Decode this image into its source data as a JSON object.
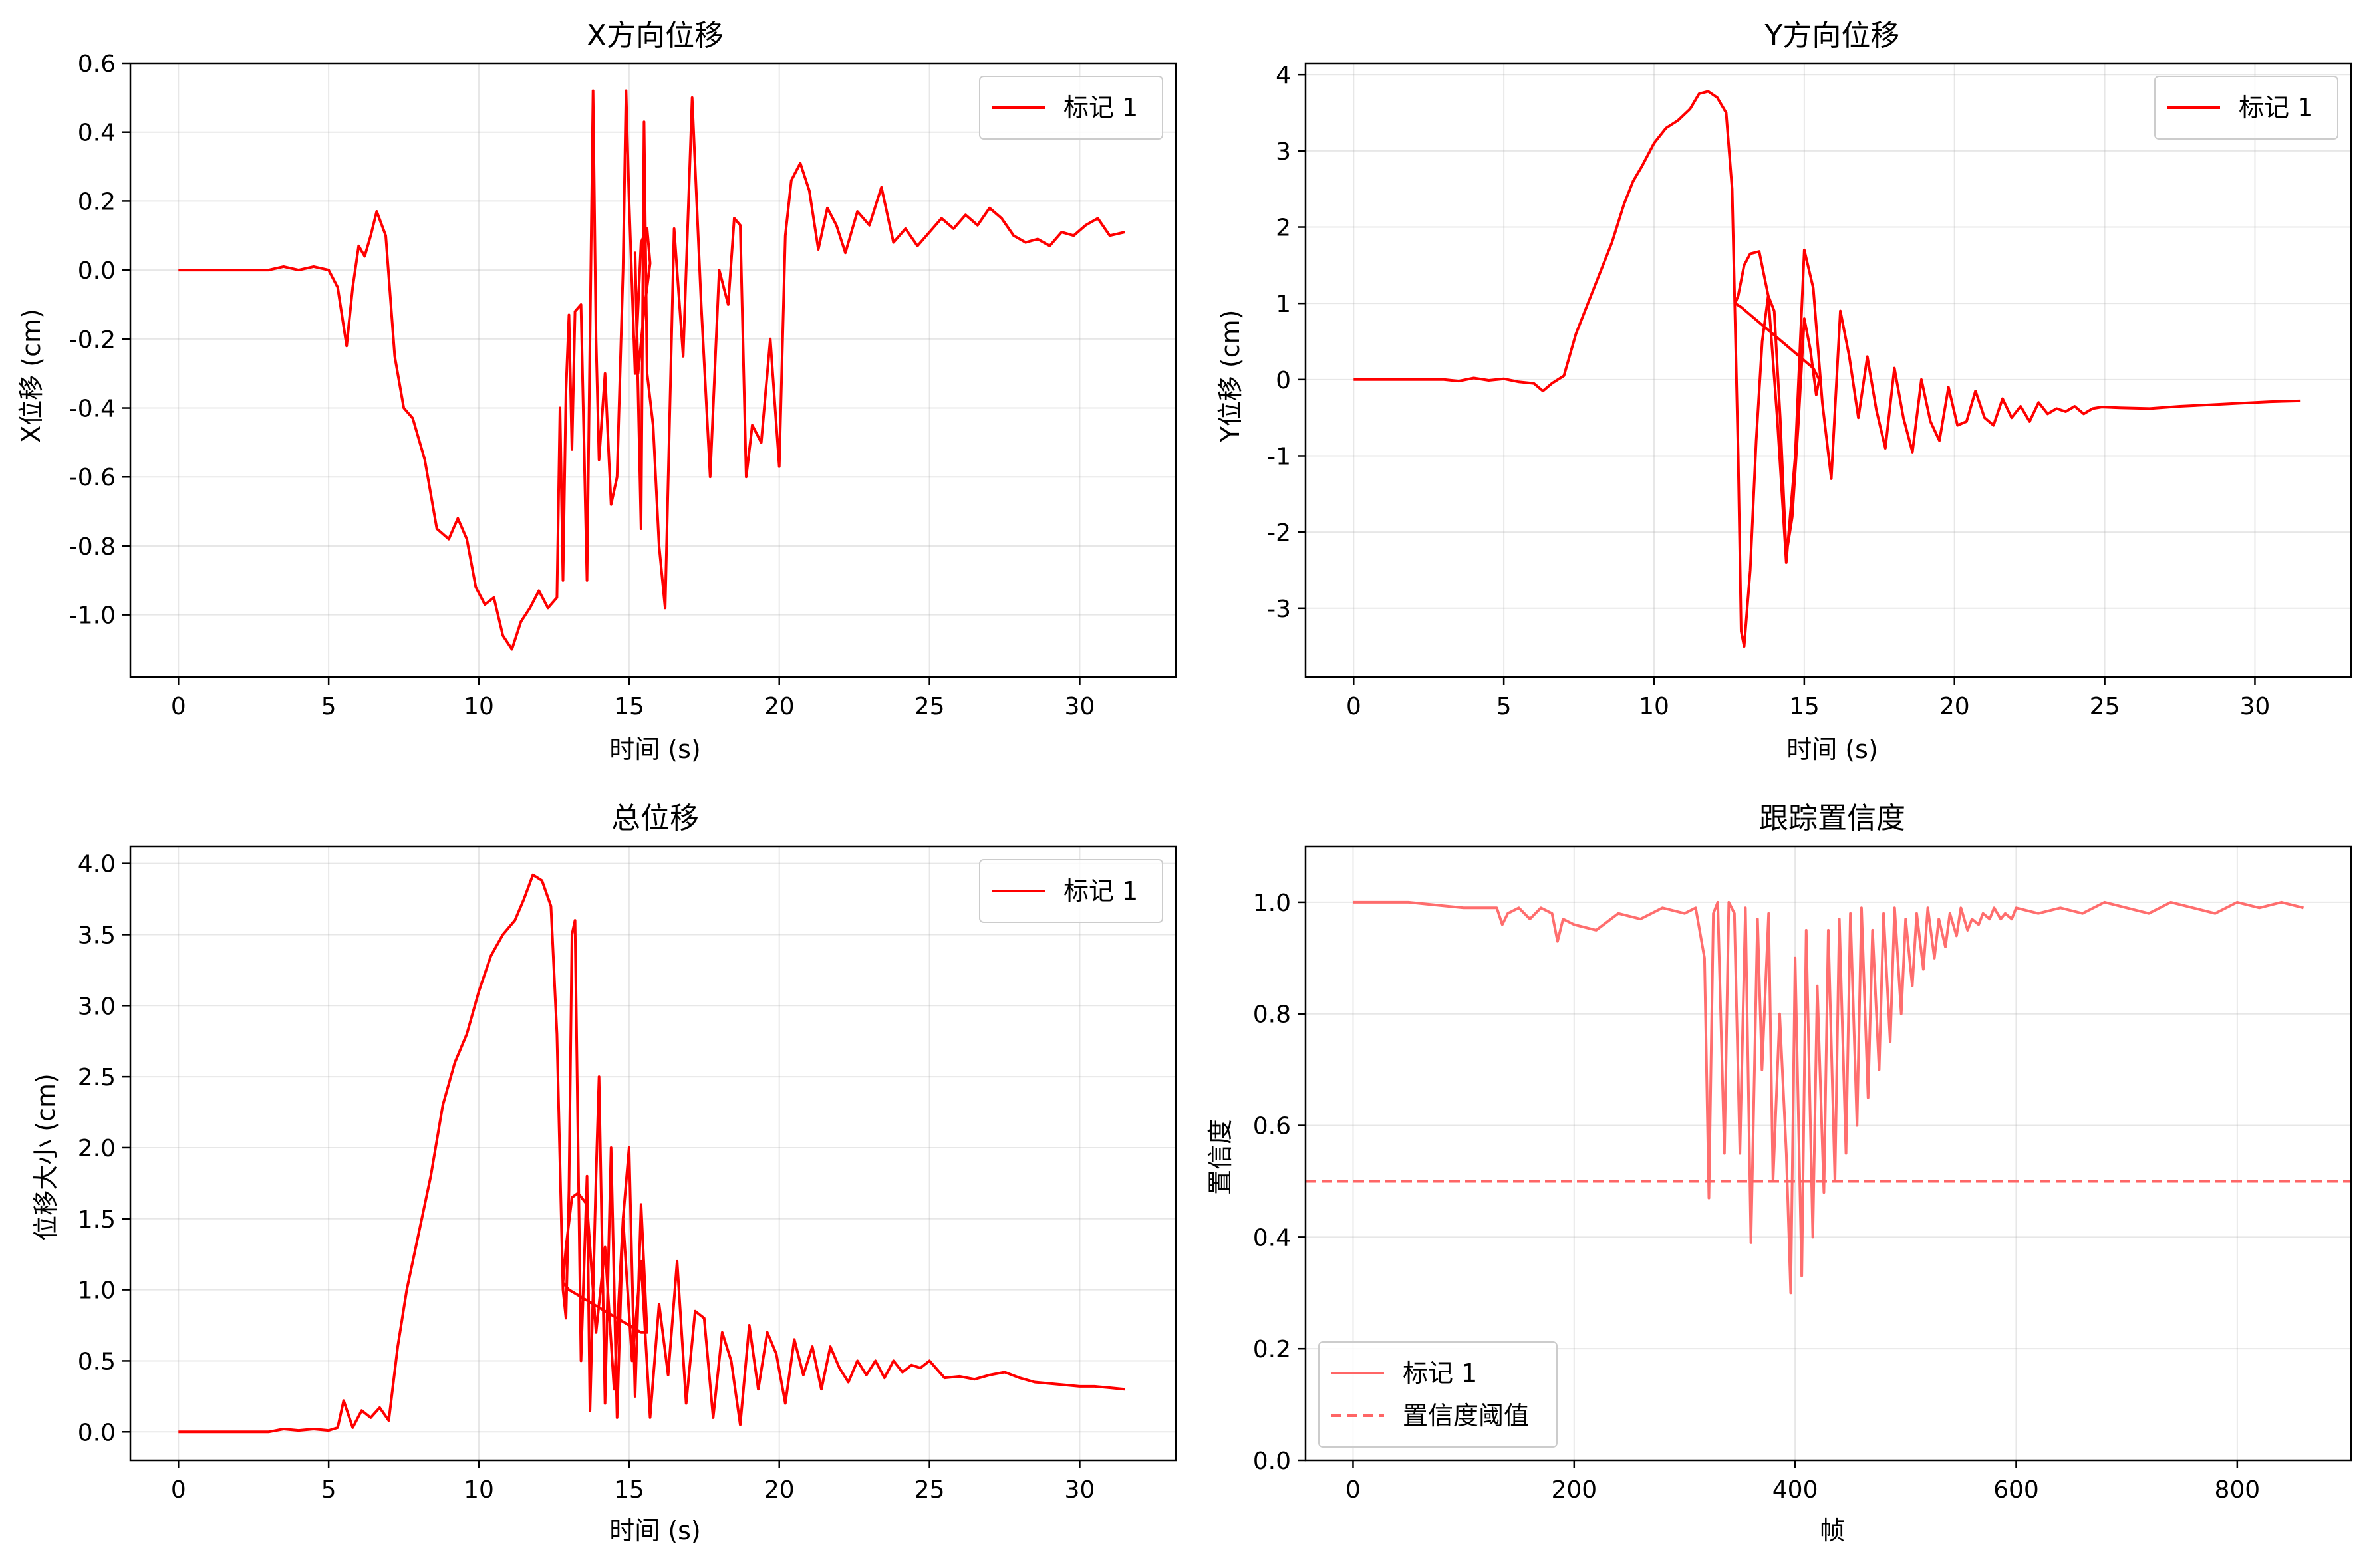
{
  "figure": {
    "background": "#ffffff"
  },
  "chart_data": [
    {
      "id": "x",
      "type": "line",
      "title": "X方向位移",
      "xlabel": "时间 (s)",
      "ylabel": "X位移 (cm)",
      "xlim": [
        -1.6,
        33.2
      ],
      "ylim": [
        -1.18,
        0.6
      ],
      "xticks": [
        0,
        5,
        10,
        15,
        20,
        25,
        30
      ],
      "xtick_labels": [
        "0",
        "5",
        "10",
        "15",
        "20",
        "25",
        "30"
      ],
      "yticks": [
        -1.0,
        -0.8,
        -0.6,
        -0.4,
        -0.2,
        0.0,
        0.2,
        0.4,
        0.6
      ],
      "ytick_labels": [
        "-1.0",
        "-0.8",
        "-0.6",
        "-0.4",
        "-0.2",
        "0.0",
        "0.2",
        "0.4",
        "0.6"
      ],
      "grid": true,
      "legend": {
        "position": "upper-right",
        "entries": [
          {
            "label": "标记 1",
            "color": "#ff0000",
            "style": "solid"
          }
        ]
      },
      "series": [
        {
          "name": "标记 1",
          "color": "#ff0000",
          "style": "solid",
          "opacity": 1,
          "x": [
            0,
            1,
            2,
            3,
            3.5,
            4,
            4.5,
            5,
            5.3,
            5.6,
            5.8,
            6.0,
            6.2,
            6.4,
            6.6,
            6.9,
            7.2,
            7.5,
            7.8,
            8.2,
            8.6,
            9.0,
            9.3,
            9.6,
            9.9,
            10.2,
            10.5,
            10.8,
            11.1,
            11.4,
            11.7,
            12.0,
            12.3,
            12.6,
            12.7,
            12.8,
            12.9,
            13.0,
            13.1,
            13.2,
            13.4,
            13.6,
            13.8,
            13.9,
            14.0,
            14.2,
            14.4,
            14.6,
            14.8,
            14.9,
            15.0,
            15.2,
            15.4,
            15.6,
            15.7,
            15.5,
            15.3,
            15.2,
            15.4,
            15.5,
            15.6,
            15.8,
            16.0,
            16.2,
            16.5,
            16.8,
            17.1,
            17.4,
            17.7,
            18.0,
            18.3,
            18.5,
            18.7,
            18.9,
            19.1,
            19.4,
            19.7,
            20.0,
            20.2,
            20.4,
            20.7,
            21.0,
            21.3,
            21.6,
            21.9,
            22.2,
            22.6,
            23.0,
            23.4,
            23.8,
            24.2,
            24.6,
            25.0,
            25.4,
            25.8,
            26.2,
            26.6,
            27.0,
            27.4,
            27.8,
            28.2,
            28.6,
            29.0,
            29.4,
            29.8,
            30.2,
            30.6,
            31.0,
            31.5
          ],
          "y": [
            0,
            0,
            0,
            0,
            0.01,
            0,
            0.01,
            0,
            -0.05,
            -0.22,
            -0.05,
            0.07,
            0.04,
            0.1,
            0.17,
            0.1,
            -0.25,
            -0.4,
            -0.43,
            -0.55,
            -0.75,
            -0.78,
            -0.72,
            -0.78,
            -0.92,
            -0.97,
            -0.95,
            -1.06,
            -1.1,
            -1.02,
            -0.98,
            -0.93,
            -0.98,
            -0.95,
            -0.4,
            -0.9,
            -0.35,
            -0.13,
            -0.52,
            -0.12,
            -0.1,
            -0.9,
            0.52,
            -0.2,
            -0.55,
            -0.3,
            -0.68,
            -0.6,
            0.0,
            0.52,
            0.2,
            -0.3,
            0.08,
            0.12,
            0.02,
            -0.12,
            -0.3,
            0.05,
            -0.75,
            0.43,
            -0.3,
            -0.45,
            -0.8,
            -0.98,
            0.12,
            -0.25,
            0.5,
            -0.1,
            -0.6,
            0.0,
            -0.1,
            0.15,
            0.13,
            -0.6,
            -0.45,
            -0.5,
            -0.2,
            -0.57,
            0.1,
            0.26,
            0.31,
            0.23,
            0.06,
            0.18,
            0.13,
            0.05,
            0.17,
            0.13,
            0.24,
            0.08,
            0.12,
            0.07,
            0.11,
            0.15,
            0.12,
            0.16,
            0.13,
            0.18,
            0.15,
            0.1,
            0.08,
            0.09,
            0.07,
            0.11,
            0.1,
            0.13,
            0.15,
            0.1,
            0.11
          ]
        }
      ]
    },
    {
      "id": "y",
      "type": "line",
      "title": "Y方向位移",
      "xlabel": "时间 (s)",
      "ylabel": "Y位移 (cm)",
      "xlim": [
        -1.6,
        33.2
      ],
      "ylim": [
        -3.9,
        4.15
      ],
      "xticks": [
        0,
        5,
        10,
        15,
        20,
        25,
        30
      ],
      "xtick_labels": [
        "0",
        "5",
        "10",
        "15",
        "20",
        "25",
        "30"
      ],
      "yticks": [
        -3,
        -2,
        -1,
        0,
        1,
        2,
        3,
        4
      ],
      "ytick_labels": [
        "-3",
        "-2",
        "-1",
        "0",
        "1",
        "2",
        "3",
        "4"
      ],
      "grid": true,
      "legend": {
        "position": "upper-right",
        "entries": [
          {
            "label": "标记 1",
            "color": "#ff0000",
            "style": "solid"
          }
        ]
      },
      "series": [
        {
          "name": "标记 1",
          "color": "#ff0000",
          "style": "solid",
          "opacity": 1,
          "x": [
            0,
            1,
            2,
            3,
            3.5,
            4,
            4.5,
            5,
            5.5,
            6,
            6.3,
            6.6,
            7,
            7.4,
            7.8,
            8.2,
            8.6,
            9,
            9.3,
            9.6,
            10,
            10.4,
            10.8,
            11.2,
            11.5,
            11.8,
            12.1,
            12.4,
            12.6,
            12.8,
            12.9,
            13.0,
            13.2,
            13.4,
            13.6,
            13.8,
            14.0,
            14.2,
            14.4,
            14.6,
            14.8,
            15.0,
            15.2,
            15.4,
            15.5,
            15.3,
            15.0,
            14.7,
            14.4,
            14.1,
            13.8,
            13.5,
            13.2,
            12.9,
            12.7,
            12.8,
            13.0,
            13.2,
            13.5,
            13.8,
            14.1,
            14.4,
            14.7,
            15.0,
            15.3,
            15.6,
            15.9,
            16.2,
            16.5,
            16.8,
            17.1,
            17.4,
            17.7,
            18.0,
            18.3,
            18.6,
            18.9,
            19.2,
            19.5,
            19.8,
            20.1,
            20.4,
            20.7,
            21.0,
            21.3,
            21.6,
            21.9,
            22.2,
            22.5,
            22.8,
            23.1,
            23.4,
            23.7,
            24.0,
            24.3,
            24.6,
            24.9,
            25.5,
            26.5,
            27.5,
            28.5,
            29.5,
            30.5,
            31.5
          ],
          "y": [
            0,
            0,
            0,
            0,
            -0.02,
            0.02,
            -0.01,
            0.01,
            -0.03,
            -0.05,
            -0.15,
            -0.05,
            0.05,
            0.6,
            1.0,
            1.4,
            1.8,
            2.3,
            2.6,
            2.8,
            3.1,
            3.3,
            3.4,
            3.55,
            3.75,
            3.78,
            3.7,
            3.5,
            2.5,
            -1.0,
            -3.3,
            -3.5,
            -2.5,
            -0.8,
            0.5,
            1.1,
            0.9,
            -0.5,
            -2.3,
            -1.8,
            -0.6,
            0.8,
            0.4,
            -0.2,
            0.0,
            0.15,
            0.25,
            0.35,
            0.45,
            0.55,
            0.65,
            0.75,
            0.85,
            0.95,
            1.0,
            1.1,
            1.5,
            1.65,
            1.68,
            1.1,
            -0.5,
            -2.4,
            -1.0,
            1.7,
            1.2,
            -0.3,
            -1.3,
            0.9,
            0.3,
            -0.5,
            0.3,
            -0.4,
            -0.9,
            0.15,
            -0.5,
            -0.95,
            0.0,
            -0.55,
            -0.8,
            -0.1,
            -0.6,
            -0.55,
            -0.15,
            -0.5,
            -0.6,
            -0.25,
            -0.5,
            -0.35,
            -0.55,
            -0.3,
            -0.45,
            -0.38,
            -0.42,
            -0.35,
            -0.45,
            -0.38,
            -0.36,
            -0.37,
            -0.38,
            -0.35,
            -0.33,
            -0.31,
            -0.29,
            -0.28
          ]
        }
      ]
    },
    {
      "id": "total",
      "type": "line",
      "title": "总位移",
      "xlabel": "时间 (s)",
      "ylabel": "位移大小 (cm)",
      "xlim": [
        -1.6,
        33.2
      ],
      "ylim": [
        -0.2,
        4.12
      ],
      "xticks": [
        0,
        5,
        10,
        15,
        20,
        25,
        30
      ],
      "xtick_labels": [
        "0",
        "5",
        "10",
        "15",
        "20",
        "25",
        "30"
      ],
      "yticks": [
        0.0,
        0.5,
        1.0,
        1.5,
        2.0,
        2.5,
        3.0,
        3.5,
        4.0
      ],
      "ytick_labels": [
        "0.0",
        "0.5",
        "1.0",
        "1.5",
        "2.0",
        "2.5",
        "3.0",
        "3.5",
        "4.0"
      ],
      "grid": true,
      "legend": {
        "position": "upper-right",
        "entries": [
          {
            "label": "标记 1",
            "color": "#ff0000",
            "style": "solid"
          }
        ]
      },
      "series": [
        {
          "name": "标记 1",
          "color": "#ff0000",
          "style": "solid",
          "opacity": 1,
          "x": [
            0,
            1,
            2,
            3,
            3.5,
            4,
            4.5,
            5,
            5.3,
            5.5,
            5.8,
            6.1,
            6.4,
            6.7,
            7.0,
            7.3,
            7.6,
            8.0,
            8.4,
            8.8,
            9.2,
            9.6,
            10,
            10.4,
            10.8,
            11.2,
            11.5,
            11.8,
            12.1,
            12.4,
            12.6,
            12.8,
            12.9,
            13.0,
            13.1,
            13.2,
            13.4,
            13.6,
            13.7,
            13.9,
            14.0,
            14.2,
            14.4,
            14.6,
            14.8,
            15.0,
            15.2,
            15.4,
            15.6,
            15.4,
            15.0,
            14.6,
            14.2,
            13.8,
            13.4,
            13.0,
            12.8,
            12.9,
            13.1,
            13.3,
            13.6,
            13.9,
            14.2,
            14.5,
            14.8,
            15.1,
            15.4,
            15.7,
            16.0,
            16.3,
            16.6,
            16.9,
            17.2,
            17.5,
            17.8,
            18.1,
            18.4,
            18.7,
            19.0,
            19.3,
            19.6,
            19.9,
            20.2,
            20.5,
            20.8,
            21.1,
            21.4,
            21.7,
            22.0,
            22.3,
            22.6,
            22.9,
            23.2,
            23.5,
            23.8,
            24.1,
            24.4,
            24.7,
            25.0,
            25.5,
            26.0,
            26.5,
            27.0,
            27.5,
            28.0,
            28.5,
            29.0,
            29.5,
            30.0,
            30.5,
            31.0,
            31.5
          ],
          "y": [
            0,
            0,
            0,
            0,
            0.02,
            0.01,
            0.02,
            0.01,
            0.03,
            0.22,
            0.03,
            0.15,
            0.1,
            0.17,
            0.08,
            0.6,
            1.0,
            1.4,
            1.8,
            2.3,
            2.6,
            2.8,
            3.1,
            3.35,
            3.5,
            3.6,
            3.75,
            3.92,
            3.88,
            3.7,
            2.8,
            1.0,
            0.8,
            1.7,
            3.5,
            3.6,
            0.5,
            1.8,
            0.15,
            1.8,
            2.5,
            0.2,
            2.0,
            0.1,
            1.5,
            2.0,
            0.25,
            1.6,
            0.7,
            0.7,
            0.75,
            0.8,
            0.85,
            0.9,
            0.95,
            1.0,
            1.05,
            1.3,
            1.65,
            1.68,
            1.6,
            0.7,
            1.3,
            0.3,
            1.5,
            0.5,
            1.2,
            0.1,
            0.9,
            0.4,
            1.2,
            0.2,
            0.85,
            0.8,
            0.1,
            0.7,
            0.5,
            0.05,
            0.75,
            0.3,
            0.7,
            0.55,
            0.2,
            0.65,
            0.4,
            0.6,
            0.3,
            0.6,
            0.45,
            0.35,
            0.5,
            0.4,
            0.5,
            0.38,
            0.5,
            0.42,
            0.47,
            0.45,
            0.5,
            0.38,
            0.39,
            0.37,
            0.4,
            0.42,
            0.38,
            0.35,
            0.34,
            0.33,
            0.32,
            0.32,
            0.31,
            0.3
          ]
        }
      ]
    },
    {
      "id": "conf",
      "type": "line",
      "title": "跟踪置信度",
      "xlabel": "帧",
      "ylabel": "置信度",
      "xlim": [
        -43,
        903
      ],
      "ylim": [
        0.0,
        1.1
      ],
      "xticks": [
        0,
        200,
        400,
        600,
        800
      ],
      "xtick_labels": [
        "0",
        "200",
        "400",
        "600",
        "800"
      ],
      "yticks": [
        0.0,
        0.2,
        0.4,
        0.6,
        0.8,
        1.0
      ],
      "ytick_labels": [
        "0.0",
        "0.2",
        "0.4",
        "0.6",
        "0.8",
        "1.0"
      ],
      "grid": true,
      "legend": {
        "position": "lower-left",
        "entries": [
          {
            "label": "标记 1",
            "color": "#ff6666",
            "style": "solid"
          },
          {
            "label": "置信度阈值",
            "color": "#ff6666",
            "style": "dashed"
          }
        ]
      },
      "series": [
        {
          "name": "标记 1",
          "color": "#ff5555",
          "style": "solid",
          "opacity": 0.85,
          "x": [
            0,
            50,
            100,
            130,
            135,
            140,
            150,
            160,
            170,
            180,
            185,
            190,
            200,
            220,
            240,
            260,
            280,
            300,
            310,
            318,
            322,
            326,
            330,
            336,
            340,
            345,
            350,
            355,
            360,
            366,
            370,
            376,
            380,
            386,
            392,
            396,
            400,
            406,
            410,
            416,
            420,
            426,
            430,
            436,
            440,
            446,
            450,
            456,
            460,
            466,
            470,
            476,
            480,
            486,
            490,
            496,
            500,
            506,
            510,
            516,
            520,
            526,
            530,
            536,
            540,
            546,
            550,
            556,
            560,
            566,
            570,
            576,
            580,
            586,
            590,
            596,
            600,
            620,
            640,
            660,
            680,
            700,
            720,
            740,
            760,
            780,
            800,
            820,
            840,
            860
          ],
          "y": [
            1.0,
            1.0,
            0.99,
            0.99,
            0.96,
            0.98,
            0.99,
            0.97,
            0.99,
            0.98,
            0.93,
            0.97,
            0.96,
            0.95,
            0.98,
            0.97,
            0.99,
            0.98,
            0.99,
            0.9,
            0.47,
            0.98,
            1.0,
            0.55,
            1.0,
            0.98,
            0.55,
            0.99,
            0.39,
            0.97,
            0.7,
            0.98,
            0.5,
            0.8,
            0.55,
            0.3,
            0.9,
            0.33,
            0.95,
            0.4,
            0.85,
            0.48,
            0.95,
            0.5,
            0.97,
            0.55,
            0.98,
            0.6,
            0.99,
            0.65,
            0.95,
            0.7,
            0.98,
            0.75,
            0.99,
            0.8,
            0.97,
            0.85,
            0.98,
            0.88,
            0.99,
            0.9,
            0.97,
            0.92,
            0.98,
            0.94,
            0.99,
            0.95,
            0.97,
            0.96,
            0.98,
            0.97,
            0.99,
            0.97,
            0.98,
            0.97,
            0.99,
            0.98,
            0.99,
            0.98,
            1.0,
            0.99,
            0.98,
            1.0,
            0.99,
            0.98,
            1.0,
            0.99,
            1.0,
            0.99
          ]
        },
        {
          "name": "置信度阈值",
          "color": "#ff6666",
          "style": "dashed",
          "opacity": 1,
          "x": [
            -43,
            903
          ],
          "y": [
            0.5,
            0.5
          ]
        }
      ]
    }
  ]
}
